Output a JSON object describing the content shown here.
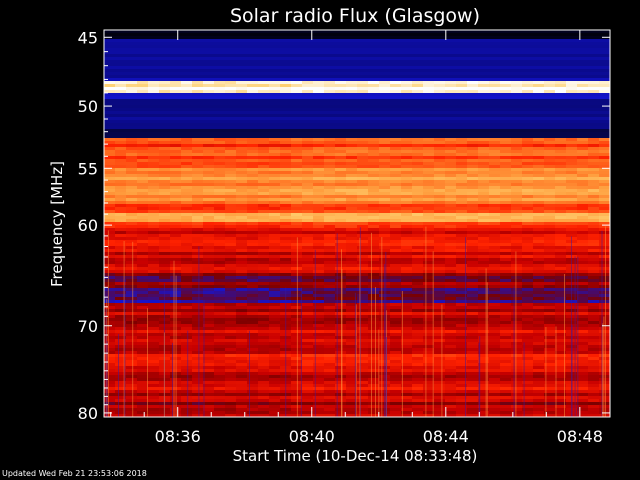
{
  "chart_data": {
    "type": "heatmap",
    "title": "Solar radio Flux (Glasgow)",
    "xlabel": "Start Time (10-Dec-14 08:33:48)",
    "ylabel": "Frequency [MHz]",
    "x_start_minutes": 513.8,
    "x_end_minutes": 528.9,
    "x_ticks": [
      {
        "label": "08:36",
        "minutes": 516
      },
      {
        "label": "08:40",
        "minutes": 520
      },
      {
        "label": "08:44",
        "minutes": 524
      },
      {
        "label": "08:48",
        "minutes": 528
      }
    ],
    "y_scale": "log",
    "ylim": [
      44.5,
      80.5
    ],
    "y_ticks": [
      45,
      50,
      55,
      60,
      70,
      80
    ],
    "y_tick_labels": [
      "45",
      "50",
      "55",
      "60",
      "70",
      "80"
    ],
    "colormap": [
      "#000000",
      "#0a0a8c",
      "#1414d2",
      "#7a0000",
      "#c80000",
      "#ff2200",
      "#ff6a1e",
      "#ffa040",
      "#ffd070",
      "#ffffff"
    ],
    "bands": [
      {
        "from": 44.5,
        "to": 45.1,
        "level": 0.02
      },
      {
        "from": 45.1,
        "to": 47.8,
        "level": 0.13
      },
      {
        "from": 47.8,
        "to": 48.2,
        "level": 0.2
      },
      {
        "from": 48.2,
        "to": 48.9,
        "level": 0.95
      },
      {
        "from": 48.9,
        "to": 49.4,
        "level": 0.2
      },
      {
        "from": 49.4,
        "to": 51.8,
        "level": 0.12
      },
      {
        "from": 51.8,
        "to": 52.5,
        "level": 0.06
      },
      {
        "from": 52.5,
        "to": 53.2,
        "level": 0.6
      },
      {
        "from": 53.2,
        "to": 55.0,
        "level": 0.66
      },
      {
        "from": 55.0,
        "to": 57.8,
        "level": 0.74
      },
      {
        "from": 57.8,
        "to": 59.0,
        "level": 0.66
      },
      {
        "from": 59.0,
        "to": 59.6,
        "level": 0.8
      },
      {
        "from": 59.6,
        "to": 62.5,
        "level": 0.52
      },
      {
        "from": 62.5,
        "to": 64.5,
        "level": 0.48
      },
      {
        "from": 64.5,
        "to": 67.5,
        "level": 0.34
      },
      {
        "from": 67.5,
        "to": 70.5,
        "level": 0.46
      },
      {
        "from": 70.5,
        "to": 73.5,
        "level": 0.5
      },
      {
        "from": 73.5,
        "to": 76.0,
        "level": 0.48
      },
      {
        "from": 76.0,
        "to": 78.5,
        "level": 0.47
      },
      {
        "from": 78.5,
        "to": 80.5,
        "level": 0.4
      }
    ]
  },
  "footer": "Updated Wed Feb 21 23:53:06 2018"
}
